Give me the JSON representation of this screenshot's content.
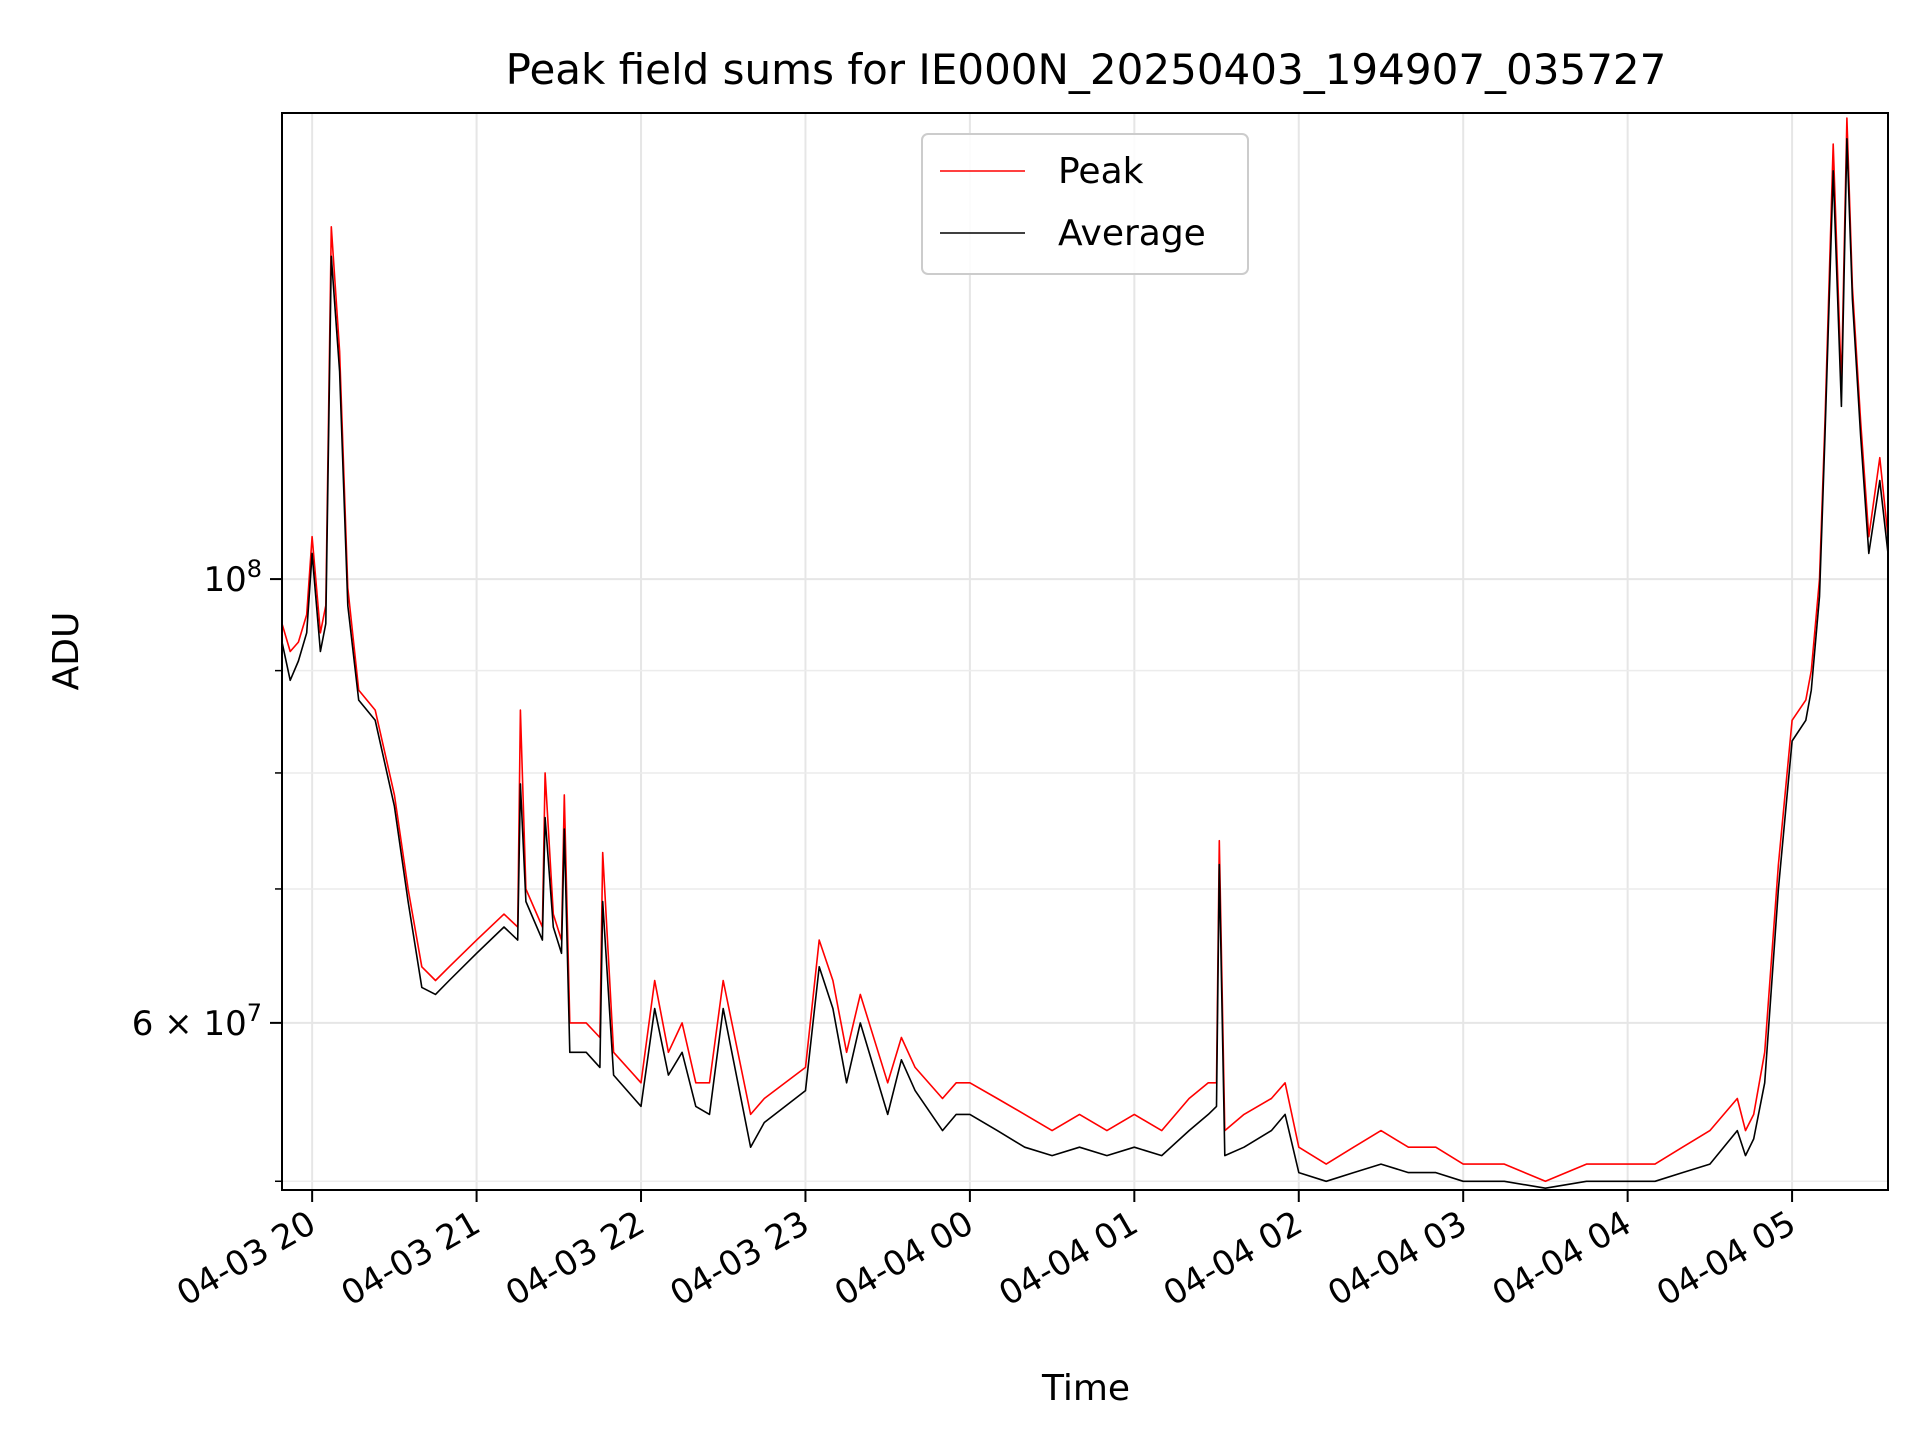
{
  "chart_data": {
    "type": "line",
    "title": "Peak field sums for IE000N_20250403_194907_035727",
    "xlabel": "Time",
    "ylabel": "ADU",
    "yscale": "log",
    "xlim": [
      "2025-04-03 19:49",
      "2025-04-04 05:35"
    ],
    "ylim": [
      49500000,
      171000000
    ],
    "x_ticks": [
      "2025-04-03 20:00",
      "2025-04-03 21:00",
      "2025-04-03 22:00",
      "2025-04-03 23:00",
      "2025-04-04 00:00",
      "2025-04-04 01:00",
      "2025-04-04 02:00",
      "2025-04-04 03:00",
      "2025-04-04 04:00",
      "2025-04-04 05:00"
    ],
    "x_tick_labels": [
      "04-03 20",
      "04-03 21",
      "04-03 22",
      "04-03 23",
      "04-04 00",
      "04-04 01",
      "04-04 02",
      "04-04 03",
      "04-04 04",
      "04-04 05"
    ],
    "y_major_ticks": [
      {
        "value": 60000000,
        "mantissa": "6",
        "exponent": "7"
      },
      {
        "value": 100000000,
        "mantissa": "",
        "exponent": "8"
      }
    ],
    "y_minor_ticks": [
      50000000,
      70000000,
      80000000,
      90000000
    ],
    "grid": true,
    "legend_position": "top-center",
    "series": [
      {
        "name": "Peak",
        "color": "#ff0000",
        "x": [
          "2025-04-03 19:49",
          "2025-04-03 19:52",
          "2025-04-03 19:55",
          "2025-04-03 19:58",
          "2025-04-03 20:00",
          "2025-04-03 20:03",
          "2025-04-03 20:05",
          "2025-04-03 20:07",
          "2025-04-03 20:10",
          "2025-04-03 20:13",
          "2025-04-03 20:17",
          "2025-04-03 20:23",
          "2025-04-03 20:30",
          "2025-04-03 20:35",
          "2025-04-03 20:40",
          "2025-04-03 20:45",
          "2025-04-03 20:50",
          "2025-04-03 21:00",
          "2025-04-03 21:10",
          "2025-04-03 21:15",
          "2025-04-03 21:16",
          "2025-04-03 21:18",
          "2025-04-03 21:24",
          "2025-04-03 21:25",
          "2025-04-03 21:28",
          "2025-04-03 21:31",
          "2025-04-03 21:32",
          "2025-04-03 21:34",
          "2025-04-03 21:40",
          "2025-04-03 21:45",
          "2025-04-03 21:46",
          "2025-04-03 21:50",
          "2025-04-03 22:00",
          "2025-04-03 22:05",
          "2025-04-03 22:10",
          "2025-04-03 22:15",
          "2025-04-03 22:20",
          "2025-04-03 22:25",
          "2025-04-03 22:30",
          "2025-04-03 22:40",
          "2025-04-03 22:45",
          "2025-04-03 23:00",
          "2025-04-03 23:05",
          "2025-04-03 23:10",
          "2025-04-03 23:15",
          "2025-04-03 23:20",
          "2025-04-03 23:30",
          "2025-04-03 23:35",
          "2025-04-03 23:40",
          "2025-04-03 23:50",
          "2025-04-03 23:55",
          "2025-04-04 00:00",
          "2025-04-04 00:10",
          "2025-04-04 00:20",
          "2025-04-04 00:30",
          "2025-04-04 00:40",
          "2025-04-04 00:50",
          "2025-04-04 01:00",
          "2025-04-04 01:10",
          "2025-04-04 01:20",
          "2025-04-04 01:27",
          "2025-04-04 01:30",
          "2025-04-04 01:31",
          "2025-04-04 01:33",
          "2025-04-04 01:40",
          "2025-04-04 01:50",
          "2025-04-04 01:55",
          "2025-04-04 02:00",
          "2025-04-04 02:10",
          "2025-04-04 02:20",
          "2025-04-04 02:30",
          "2025-04-04 02:40",
          "2025-04-04 02:50",
          "2025-04-04 03:00",
          "2025-04-04 03:15",
          "2025-04-04 03:30",
          "2025-04-04 03:45",
          "2025-04-04 04:00",
          "2025-04-04 04:10",
          "2025-04-04 04:20",
          "2025-04-04 04:30",
          "2025-04-04 04:40",
          "2025-04-04 04:43",
          "2025-04-04 04:46",
          "2025-04-04 04:50",
          "2025-04-04 04:55",
          "2025-04-04 05:00",
          "2025-04-04 05:05",
          "2025-04-04 05:07",
          "2025-04-04 05:10",
          "2025-04-04 05:12",
          "2025-04-04 05:15",
          "2025-04-04 05:18",
          "2025-04-04 05:20",
          "2025-04-04 05:22",
          "2025-04-04 05:25",
          "2025-04-04 05:28",
          "2025-04-04 05:32",
          "2025-04-04 05:35"
        ],
        "y": [
          95000000,
          92000000,
          93000000,
          96000000,
          105000000,
          94000000,
          97000000,
          150000000,
          130000000,
          99000000,
          88000000,
          86000000,
          78000000,
          70000000,
          64000000,
          63000000,
          64000000,
          66000000,
          68000000,
          67000000,
          86000000,
          70000000,
          67000000,
          80000000,
          68000000,
          66000000,
          78000000,
          60000000,
          60000000,
          59000000,
          73000000,
          58000000,
          56000000,
          63000000,
          58000000,
          60000000,
          56000000,
          56000000,
          63000000,
          54000000,
          55000000,
          57000000,
          66000000,
          63000000,
          58000000,
          62000000,
          56000000,
          59000000,
          57000000,
          55000000,
          56000000,
          56000000,
          55000000,
          54000000,
          53000000,
          54000000,
          53000000,
          54000000,
          53000000,
          55000000,
          56000000,
          56000000,
          74000000,
          53000000,
          54000000,
          55000000,
          56000000,
          52000000,
          51000000,
          52000000,
          53000000,
          52000000,
          52000000,
          51000000,
          51000000,
          50000000,
          51000000,
          51000000,
          51000000,
          52000000,
          53000000,
          55000000,
          53000000,
          54000000,
          58000000,
          72000000,
          85000000,
          87000000,
          90000000,
          100000000,
          120000000,
          165000000,
          125000000,
          170000000,
          140000000,
          120000000,
          105000000,
          115000000,
          105000000
        ]
      },
      {
        "name": "Average",
        "color": "#000000",
        "x": [
          "2025-04-03 19:49",
          "2025-04-03 19:52",
          "2025-04-03 19:55",
          "2025-04-03 19:58",
          "2025-04-03 20:00",
          "2025-04-03 20:03",
          "2025-04-03 20:05",
          "2025-04-03 20:07",
          "2025-04-03 20:10",
          "2025-04-03 20:13",
          "2025-04-03 20:17",
          "2025-04-03 20:23",
          "2025-04-03 20:30",
          "2025-04-03 20:35",
          "2025-04-03 20:40",
          "2025-04-03 20:45",
          "2025-04-03 20:50",
          "2025-04-03 21:00",
          "2025-04-03 21:10",
          "2025-04-03 21:15",
          "2025-04-03 21:16",
          "2025-04-03 21:18",
          "2025-04-03 21:24",
          "2025-04-03 21:25",
          "2025-04-03 21:28",
          "2025-04-03 21:31",
          "2025-04-03 21:32",
          "2025-04-03 21:34",
          "2025-04-03 21:40",
          "2025-04-03 21:45",
          "2025-04-03 21:46",
          "2025-04-03 21:50",
          "2025-04-03 22:00",
          "2025-04-03 22:05",
          "2025-04-03 22:10",
          "2025-04-03 22:15",
          "2025-04-03 22:20",
          "2025-04-03 22:25",
          "2025-04-03 22:30",
          "2025-04-03 22:40",
          "2025-04-03 22:45",
          "2025-04-03 23:00",
          "2025-04-03 23:05",
          "2025-04-03 23:10",
          "2025-04-03 23:15",
          "2025-04-03 23:20",
          "2025-04-03 23:30",
          "2025-04-03 23:35",
          "2025-04-03 23:40",
          "2025-04-03 23:50",
          "2025-04-03 23:55",
          "2025-04-04 00:00",
          "2025-04-04 00:10",
          "2025-04-04 00:20",
          "2025-04-04 00:30",
          "2025-04-04 00:40",
          "2025-04-04 00:50",
          "2025-04-04 01:00",
          "2025-04-04 01:10",
          "2025-04-04 01:20",
          "2025-04-04 01:27",
          "2025-04-04 01:30",
          "2025-04-04 01:31",
          "2025-04-04 01:33",
          "2025-04-04 01:40",
          "2025-04-04 01:50",
          "2025-04-04 01:55",
          "2025-04-04 02:00",
          "2025-04-04 02:10",
          "2025-04-04 02:20",
          "2025-04-04 02:30",
          "2025-04-04 02:40",
          "2025-04-04 02:50",
          "2025-04-04 03:00",
          "2025-04-04 03:15",
          "2025-04-04 03:30",
          "2025-04-04 03:45",
          "2025-04-04 04:00",
          "2025-04-04 04:10",
          "2025-04-04 04:20",
          "2025-04-04 04:30",
          "2025-04-04 04:40",
          "2025-04-04 04:43",
          "2025-04-04 04:46",
          "2025-04-04 04:50",
          "2025-04-04 04:55",
          "2025-04-04 05:00",
          "2025-04-04 05:05",
          "2025-04-04 05:07",
          "2025-04-04 05:10",
          "2025-04-04 05:12",
          "2025-04-04 05:15",
          "2025-04-04 05:18",
          "2025-04-04 05:20",
          "2025-04-04 05:22",
          "2025-04-04 05:25",
          "2025-04-04 05:28",
          "2025-04-04 05:32",
          "2025-04-04 05:35"
        ],
        "y": [
          93000000,
          89000000,
          91000000,
          94000000,
          103000000,
          92000000,
          95000000,
          145000000,
          127000000,
          97000000,
          87000000,
          85000000,
          77000000,
          69000000,
          62500000,
          62000000,
          63000000,
          65000000,
          67000000,
          66000000,
          79000000,
          69000000,
          66000000,
          76000000,
          67000000,
          65000000,
          75000000,
          58000000,
          58000000,
          57000000,
          69000000,
          56500000,
          54500000,
          61000000,
          56500000,
          58000000,
          54500000,
          54000000,
          61000000,
          52000000,
          53500000,
          55500000,
          64000000,
          61000000,
          56000000,
          60000000,
          54000000,
          57500000,
          55500000,
          53000000,
          54000000,
          54000000,
          53000000,
          52000000,
          51500000,
          52000000,
          51500000,
          52000000,
          51500000,
          53000000,
          54000000,
          54500000,
          72000000,
          51500000,
          52000000,
          53000000,
          54000000,
          50500000,
          50000000,
          50500000,
          51000000,
          50500000,
          50500000,
          50000000,
          50000000,
          49600000,
          50000000,
          50000000,
          50000000,
          50500000,
          51000000,
          53000000,
          51500000,
          52500000,
          56000000,
          70000000,
          83000000,
          85000000,
          88000000,
          98000000,
          118000000,
          160000000,
          122000000,
          166000000,
          138000000,
          118000000,
          103000000,
          112000000,
          103000000
        ]
      }
    ]
  }
}
